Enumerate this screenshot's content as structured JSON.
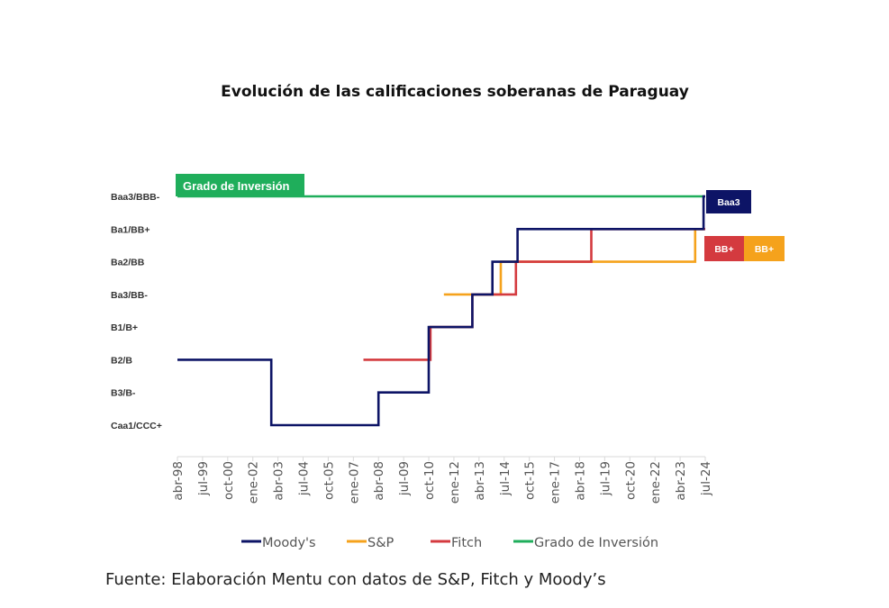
{
  "chart_data": {
    "type": "line",
    "step": true,
    "title": "Evolución de las calificaciones soberanas de Paraguay",
    "xlabel": "",
    "ylabel": "",
    "x_ticks": [
      "abr-98",
      "jul-99",
      "oct-00",
      "ene-02",
      "abr-03",
      "jul-04",
      "oct-05",
      "ene-07",
      "abr-08",
      "jul-09",
      "oct-10",
      "ene-12",
      "abr-13",
      "jul-14",
      "oct-15",
      "ene-17",
      "abr-18",
      "jul-19",
      "oct-20",
      "ene-22",
      "abr-23",
      "jul-24"
    ],
    "xlim": [
      "1998-04",
      "2024-07"
    ],
    "y_categories": [
      "Caa1/CCC+",
      "B3/B-",
      "B2/B",
      "B1/B+",
      "Ba3/BB-",
      "Ba2/BB",
      "Ba1/BB+",
      "Baa3/BBB-"
    ],
    "grid": false,
    "legend_position": "bottom",
    "series": [
      {
        "name": "Moody's",
        "color": "#0d1466",
        "points": [
          [
            "1998-04",
            "B2/B"
          ],
          [
            "2002-12",
            "Caa1/CCC+"
          ],
          [
            "2008-04",
            "B3/B-"
          ],
          [
            "2010-10",
            "B1/B+"
          ],
          [
            "2012-12",
            "Ba3/BB-"
          ],
          [
            "2013-12",
            "Ba2/BB"
          ],
          [
            "2015-03",
            "Ba1/BB+"
          ],
          [
            "2024-06",
            "Baa3/BBB-"
          ],
          [
            "2024-07",
            "Baa3/BBB-"
          ]
        ]
      },
      {
        "name": "S&P",
        "color": "#f5a21c",
        "points": [
          [
            "2011-07",
            "Ba3/BB-"
          ],
          [
            "2014-05",
            "Ba2/BB"
          ],
          [
            "2024-01",
            "Ba1/BB+"
          ],
          [
            "2024-06",
            "Ba1/BB+"
          ]
        ]
      },
      {
        "name": "Fitch",
        "color": "#d43a3f",
        "points": [
          [
            "2007-07",
            "B2/B"
          ],
          [
            "2010-11",
            "B1/B+"
          ],
          [
            "2012-12",
            "Ba3/BB-"
          ],
          [
            "2015-02",
            "Ba2/BB"
          ],
          [
            "2018-11",
            "Ba1/BB+"
          ],
          [
            "2024-07",
            "Ba1/BB+"
          ]
        ]
      },
      {
        "name": "Grado de Inversión",
        "color": "#1fae5b",
        "points": [
          [
            "1998-04",
            "Baa3/BBB-"
          ],
          [
            "2024-07",
            "Baa3/BBB-"
          ]
        ]
      }
    ],
    "annotations": {
      "investment_grade_label": "Grado de Inversión",
      "end_labels": [
        {
          "text": "Baa3",
          "color": "#0d1466"
        },
        {
          "text": "BB+",
          "color": "#d43a3f"
        },
        {
          "text": "BB+",
          "color": "#f5a21c"
        }
      ]
    }
  },
  "footer": "Fuente: Elaboración Mentu con datos de S&P, Fitch y Moody’s"
}
